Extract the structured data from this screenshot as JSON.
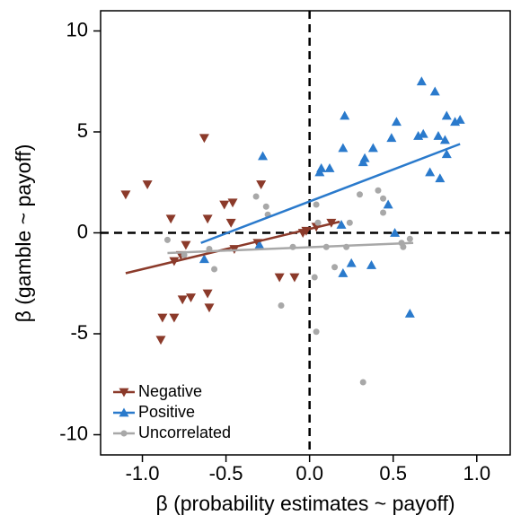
{
  "chart_data": {
    "type": "scatter",
    "xlabel": "β (probability estimates ~ payoff)",
    "ylabel": "β (gamble ~ payoff)",
    "xlim": [
      -1.25,
      1.2
    ],
    "ylim": [
      -11,
      11
    ],
    "xticks": [
      {
        "value": -1.0,
        "label": "-1.0"
      },
      -0.5,
      {
        "value": 0.0,
        "label": "0.0"
      },
      0.5,
      {
        "value": 1.0,
        "label": "1.0"
      }
    ],
    "yticks": [
      10,
      5,
      0,
      -5,
      -10
    ],
    "hline": 0,
    "vline": 0,
    "legend": "lower left",
    "series": [
      {
        "name": "Negative",
        "color": "#8b3a2a",
        "marker": "triangle-down",
        "x": [
          -1.1,
          -0.97,
          -0.63,
          -0.88,
          -0.89,
          -0.81,
          -0.76,
          -0.71,
          -0.83,
          -0.81,
          -0.77,
          -0.74,
          -0.61,
          -0.6,
          -0.61,
          -0.51,
          -0.47,
          -0.45,
          -0.31,
          -0.46,
          -0.29,
          -0.18,
          -0.09,
          -0.04,
          -0.02,
          0.04,
          0.13
        ],
        "values": [
          1.9,
          2.4,
          4.7,
          -4.2,
          -5.3,
          -4.2,
          -3.3,
          -3.2,
          0.7,
          -1.4,
          -1.1,
          -0.6,
          -3.0,
          -3.7,
          0.7,
          1.4,
          0.5,
          -0.8,
          -0.5,
          1.5,
          2.4,
          -2.2,
          -2.2,
          0.0,
          0.1,
          0.3,
          0.5
        ],
        "fit": {
          "x": [
            -1.1,
            0.18
          ],
          "y": [
            -2.0,
            0.55
          ]
        }
      },
      {
        "name": "Positive",
        "color": "#2a7acc",
        "marker": "triangle-up",
        "x": [
          0.67,
          0.75,
          0.82,
          0.9,
          0.87,
          0.21,
          0.52,
          0.49,
          0.38,
          0.2,
          0.32,
          0.33,
          0.12,
          0.07,
          0.06,
          0.81,
          0.77,
          0.82,
          0.72,
          0.78,
          0.68,
          0.65,
          -0.28,
          -0.63,
          -0.3,
          0.2,
          0.25,
          0.37,
          0.47,
          0.6,
          0.51,
          0.19
        ],
        "values": [
          7.5,
          7.0,
          5.8,
          5.6,
          5.5,
          5.8,
          5.5,
          4.7,
          4.2,
          4.2,
          3.5,
          3.7,
          3.2,
          3.2,
          3.0,
          4.6,
          4.8,
          3.9,
          3.0,
          2.7,
          4.9,
          4.8,
          3.8,
          -1.3,
          -0.6,
          -2.0,
          -1.5,
          -1.6,
          1.4,
          -4.0,
          0.0,
          0.4
        ],
        "fit": {
          "x": [
            -0.65,
            0.9
          ],
          "y": [
            -0.5,
            4.4
          ]
        }
      },
      {
        "name": "Uncorrelated",
        "color": "#a8a8a8",
        "marker": "circle",
        "x": [
          -0.85,
          -0.32,
          -0.25,
          -0.26,
          -0.1,
          -0.17,
          0.03,
          0.04,
          0.04,
          0.05,
          0.1,
          0.15,
          0.22,
          0.24,
          0.3,
          0.32,
          0.41,
          0.44,
          0.44,
          0.55,
          0.56,
          0.6,
          -0.6,
          -0.57,
          -0.75
        ],
        "values": [
          -0.35,
          1.8,
          0.9,
          1.3,
          -0.7,
          -3.6,
          -2.2,
          -4.9,
          1.4,
          0.5,
          -0.7,
          -1.7,
          -0.7,
          0.5,
          1.9,
          -7.4,
          2.1,
          1.7,
          1.0,
          -0.5,
          -0.7,
          -0.3,
          -0.8,
          -1.8,
          -1.1
        ],
        "fit": {
          "x": [
            -0.85,
            0.62
          ],
          "y": [
            -1.0,
            -0.5
          ]
        }
      }
    ]
  }
}
